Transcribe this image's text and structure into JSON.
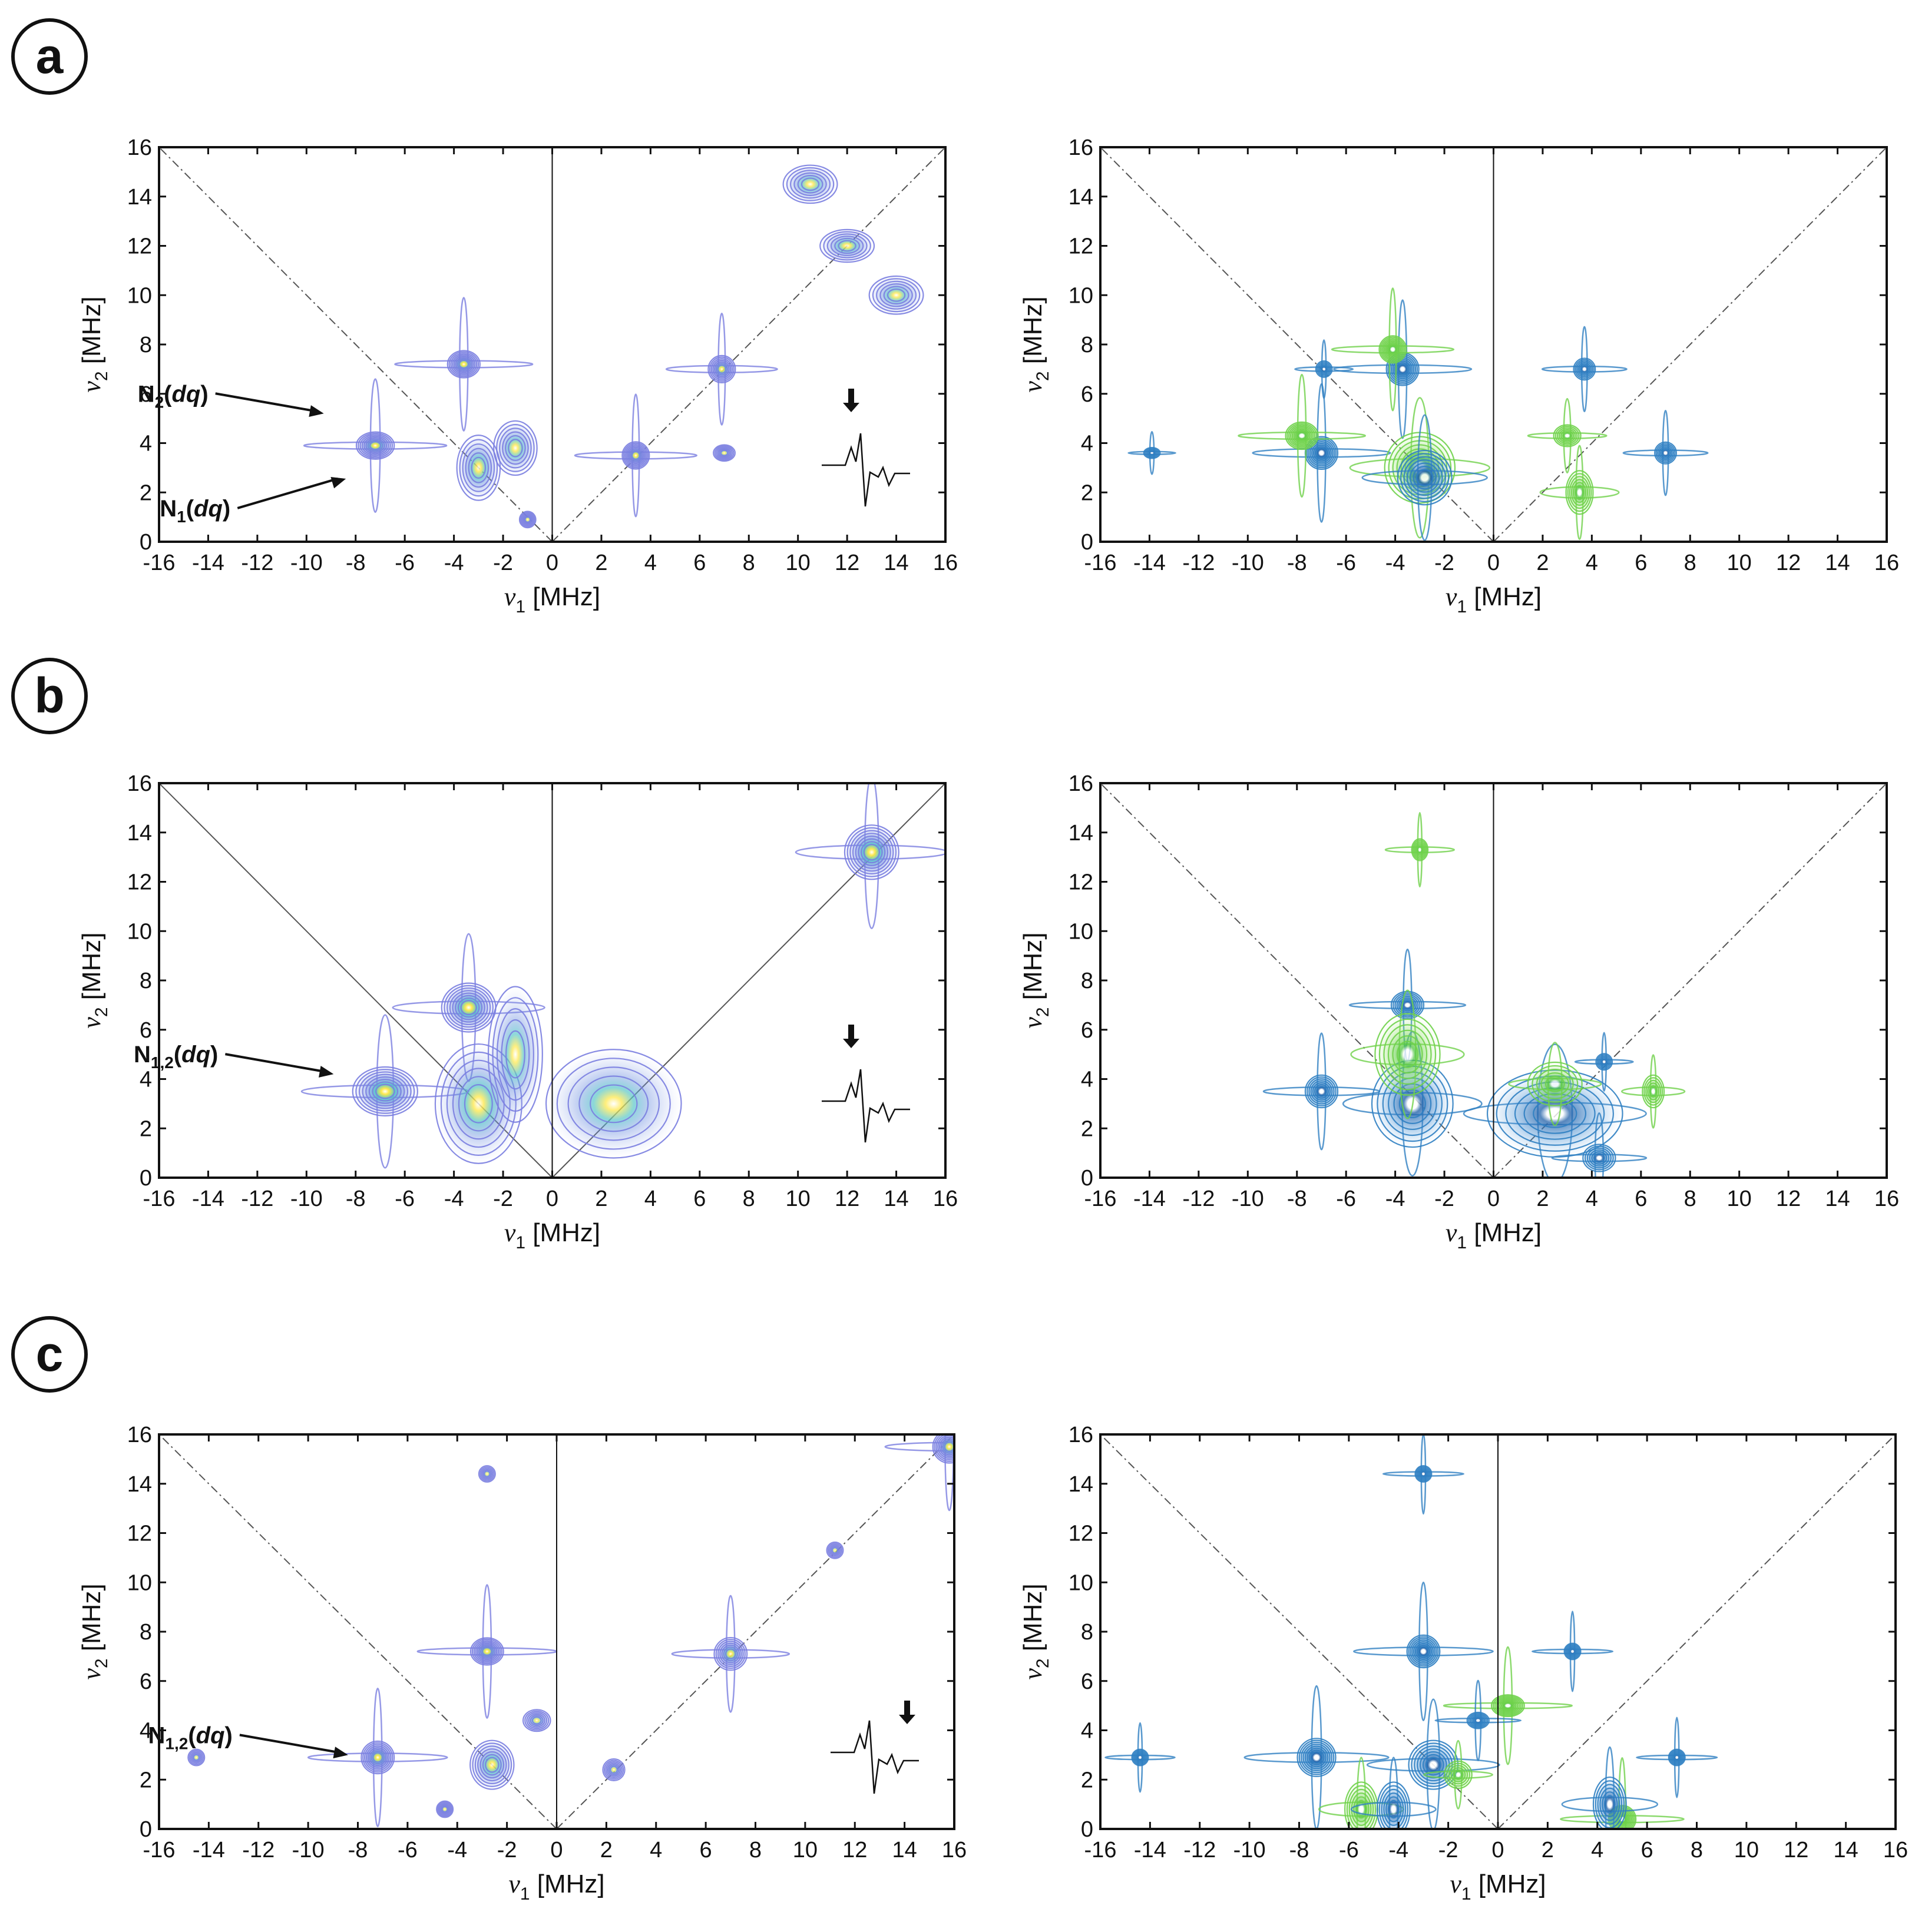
{
  "colors": {
    "axis": "#111111",
    "grid_line": "#555555",
    "contour_raw": "#7a7ee0",
    "contour_raw_fill": "#b9c7f2",
    "contour_blue": "#2f7fc2",
    "contour_green": "#6fd14a",
    "peak_hot": "#f4e640",
    "peak_core": "#ffffff"
  },
  "axes": {
    "xlabel_sym": "ν",
    "xlabel_sub": "1",
    "xlabel_unit": " [MHz]",
    "ylabel_sym": "ν",
    "ylabel_sub": "2",
    "ylabel_unit": " [MHz]",
    "xticks": [
      "-16",
      "-14",
      "-12",
      "-10",
      "-8",
      "-6",
      "-4",
      "-2",
      "0",
      "2",
      "4",
      "6",
      "8",
      "10",
      "12",
      "14",
      "16"
    ],
    "yticks": [
      "0",
      "2",
      "4",
      "6",
      "8",
      "10",
      "12",
      "14",
      "16"
    ],
    "xlim": [
      -16,
      16
    ],
    "ylim": [
      0,
      16
    ]
  },
  "chart_data": [
    {
      "panel": "a",
      "side": "left",
      "type": "heatmap",
      "style": "raw",
      "title": "",
      "xlabel": "ν1 [MHz]",
      "ylabel": "ν2 [MHz]",
      "annotations": [
        {
          "main": "N",
          "sub": "2",
          "rest": "(",
          "ital": "dq",
          "close": ")",
          "target": [
            -9.2,
            5.2
          ]
        },
        {
          "main": "N",
          "sub": "1",
          "rest": "(",
          "ital": "dq",
          "close": ")",
          "target": [
            -8.3,
            2.7
          ]
        }
      ],
      "eseem_trace": true,
      "peaks": [
        {
          "x": -7.2,
          "y": 3.9,
          "w": 0.7,
          "h": 0.5,
          "i": 1.0
        },
        {
          "x": -3.6,
          "y": 7.2,
          "w": 0.6,
          "h": 0.5,
          "i": 1.0
        },
        {
          "x": -3.0,
          "y": 3.0,
          "w": 0.8,
          "h": 1.2,
          "i": 0.6
        },
        {
          "x": -1.5,
          "y": 3.8,
          "w": 0.8,
          "h": 1.0,
          "i": 0.5
        },
        {
          "x": 3.4,
          "y": 3.5,
          "w": 0.5,
          "h": 0.5,
          "i": 0.9
        },
        {
          "x": 6.9,
          "y": 7.0,
          "w": 0.5,
          "h": 0.5,
          "i": 0.8
        },
        {
          "x": 7.0,
          "y": 3.6,
          "w": 0.4,
          "h": 0.3,
          "i": 0.5
        },
        {
          "x": -1.0,
          "y": 0.9,
          "w": 0.3,
          "h": 0.3,
          "i": 0.5
        },
        {
          "x": 12.0,
          "y": 12.0,
          "w": 1.0,
          "h": 0.6,
          "i": 0.6
        },
        {
          "x": 10.5,
          "y": 14.5,
          "w": 1.0,
          "h": 0.7,
          "i": 0.5
        },
        {
          "x": 14.0,
          "y": 10.0,
          "w": 1.0,
          "h": 0.7,
          "i": 0.5
        }
      ]
    },
    {
      "panel": "a",
      "side": "right",
      "type": "heatmap",
      "style": "sim",
      "title": "",
      "xlabel": "ν1 [MHz]",
      "ylabel": "ν2 [MHz]",
      "peaks": [
        {
          "x": -7.0,
          "y": 3.6,
          "w": 0.6,
          "h": 0.6,
          "i": 1.0,
          "c": "blue"
        },
        {
          "x": -3.7,
          "y": 7.0,
          "w": 0.6,
          "h": 0.6,
          "i": 1.0,
          "c": "blue"
        },
        {
          "x": -7.8,
          "y": 4.3,
          "w": 0.6,
          "h": 0.5,
          "i": 0.9,
          "c": "green"
        },
        {
          "x": -4.1,
          "y": 7.8,
          "w": 0.5,
          "h": 0.5,
          "i": 0.9,
          "c": "green"
        },
        {
          "x": -3.0,
          "y": 3.0,
          "w": 1.3,
          "h": 1.3,
          "i": 0.7,
          "c": "green"
        },
        {
          "x": -2.8,
          "y": 2.6,
          "w": 1.0,
          "h": 1.0,
          "i": 0.7,
          "c": "blue"
        },
        {
          "x": 3.7,
          "y": 7.0,
          "w": 0.4,
          "h": 0.4,
          "i": 0.6,
          "c": "blue"
        },
        {
          "x": 7.0,
          "y": 3.6,
          "w": 0.4,
          "h": 0.4,
          "i": 0.6,
          "c": "blue"
        },
        {
          "x": 3.0,
          "y": 4.3,
          "w": 0.5,
          "h": 0.4,
          "i": 0.5,
          "c": "green"
        },
        {
          "x": 3.5,
          "y": 2.0,
          "w": 0.5,
          "h": 0.8,
          "i": 0.5,
          "c": "green"
        },
        {
          "x": -6.9,
          "y": 7.0,
          "w": 0.3,
          "h": 0.3,
          "i": 0.4,
          "c": "blue"
        },
        {
          "x": -13.9,
          "y": 3.6,
          "w": 0.3,
          "h": 0.2,
          "i": 0.3,
          "c": "blue"
        }
      ]
    },
    {
      "panel": "b",
      "side": "left",
      "type": "heatmap",
      "style": "raw",
      "title": "",
      "xlabel": "ν1 [MHz]",
      "ylabel": "ν2 [MHz]",
      "annotations": [
        {
          "main": "N",
          "sub": "1,2",
          "rest": "(",
          "ital": "dq",
          "close": ")",
          "target": [
            -8.8,
            4.2
          ]
        }
      ],
      "eseem_trace": true,
      "peaks": [
        {
          "x": -6.8,
          "y": 3.5,
          "w": 1.2,
          "h": 0.9,
          "i": 1.0
        },
        {
          "x": -3.4,
          "y": 6.9,
          "w": 1.0,
          "h": 0.9,
          "i": 0.95
        },
        {
          "x": -3.0,
          "y": 3.0,
          "w": 1.6,
          "h": 2.2,
          "i": 0.5
        },
        {
          "x": 13.0,
          "y": 13.2,
          "w": 1.0,
          "h": 1.0,
          "i": 0.95
        },
        {
          "x": 2.5,
          "y": 3.0,
          "w": 2.5,
          "h": 2.0,
          "i": 0.4
        },
        {
          "x": -1.5,
          "y": 5.0,
          "w": 1.0,
          "h": 2.5,
          "i": 0.35
        }
      ]
    },
    {
      "panel": "b",
      "side": "right",
      "type": "heatmap",
      "style": "sim",
      "title": "",
      "xlabel": "ν1 [MHz]",
      "ylabel": "ν2 [MHz]",
      "peaks": [
        {
          "x": -7.0,
          "y": 3.5,
          "w": 0.6,
          "h": 0.6,
          "i": 0.8,
          "c": "blue"
        },
        {
          "x": -3.5,
          "y": 7.0,
          "w": 0.6,
          "h": 0.5,
          "i": 0.8,
          "c": "blue"
        },
        {
          "x": -3.3,
          "y": 3.0,
          "w": 1.5,
          "h": 1.6,
          "i": 0.6,
          "c": "blue"
        },
        {
          "x": 2.5,
          "y": 2.6,
          "w": 2.5,
          "h": 1.6,
          "i": 0.55,
          "c": "blue"
        },
        {
          "x": 4.3,
          "y": 0.8,
          "w": 0.6,
          "h": 0.5,
          "i": 0.6,
          "c": "blue"
        },
        {
          "x": -3.0,
          "y": 13.3,
          "w": 0.3,
          "h": 0.4,
          "i": 0.5,
          "c": "green"
        },
        {
          "x": -3.5,
          "y": 5.0,
          "w": 1.2,
          "h": 1.5,
          "i": 0.5,
          "c": "green"
        },
        {
          "x": 2.5,
          "y": 3.8,
          "w": 1.0,
          "h": 0.8,
          "i": 0.4,
          "c": "green"
        },
        {
          "x": 6.5,
          "y": 3.5,
          "w": 0.4,
          "h": 0.6,
          "i": 0.4,
          "c": "green"
        },
        {
          "x": 4.5,
          "y": 4.7,
          "w": 0.3,
          "h": 0.3,
          "i": 0.4,
          "c": "blue"
        }
      ]
    },
    {
      "panel": "c",
      "side": "left",
      "type": "heatmap",
      "style": "raw",
      "title": "",
      "xlabel": "ν1 [MHz]",
      "ylabel": "ν2 [MHz]",
      "annotations": [
        {
          "main": "N",
          "sub": "1,2",
          "rest": "(",
          "ital": "dq",
          "close": ")",
          "target": [
            -8.3,
            3.0
          ]
        }
      ],
      "eseem_trace": true,
      "peaks": [
        {
          "x": -7.2,
          "y": 2.9,
          "w": 0.6,
          "h": 0.6,
          "i": 1.0
        },
        {
          "x": -2.8,
          "y": 7.2,
          "w": 0.6,
          "h": 0.5,
          "i": 1.0
        },
        {
          "x": -2.6,
          "y": 2.6,
          "w": 0.8,
          "h": 0.9,
          "i": 0.7
        },
        {
          "x": 7.0,
          "y": 7.1,
          "w": 0.6,
          "h": 0.6,
          "i": 0.8
        },
        {
          "x": 2.3,
          "y": 2.4,
          "w": 0.4,
          "h": 0.4,
          "i": 0.5
        },
        {
          "x": -0.8,
          "y": 4.4,
          "w": 0.5,
          "h": 0.4,
          "i": 0.5
        },
        {
          "x": 15.8,
          "y": 15.5,
          "w": 0.6,
          "h": 0.6,
          "i": 0.9
        },
        {
          "x": -4.5,
          "y": 0.8,
          "w": 0.3,
          "h": 0.3,
          "i": 0.5
        },
        {
          "x": -14.5,
          "y": 2.9,
          "w": 0.3,
          "h": 0.3,
          "i": 0.4
        },
        {
          "x": 11.2,
          "y": 11.3,
          "w": 0.3,
          "h": 0.3,
          "i": 0.4
        },
        {
          "x": -2.8,
          "y": 14.4,
          "w": 0.3,
          "h": 0.3,
          "i": 0.4
        }
      ]
    },
    {
      "panel": "c",
      "side": "right",
      "type": "heatmap",
      "style": "sim",
      "title": "",
      "xlabel": "ν1 [MHz]",
      "ylabel": "ν2 [MHz]",
      "peaks": [
        {
          "x": -7.3,
          "y": 2.9,
          "w": 0.7,
          "h": 0.7,
          "i": 1.0,
          "c": "blue"
        },
        {
          "x": -3.0,
          "y": 7.2,
          "w": 0.6,
          "h": 0.6,
          "i": 1.0,
          "c": "blue"
        },
        {
          "x": -2.6,
          "y": 2.6,
          "w": 0.9,
          "h": 0.9,
          "i": 0.8,
          "c": "blue"
        },
        {
          "x": -3.0,
          "y": 14.4,
          "w": 0.3,
          "h": 0.3,
          "i": 0.6,
          "c": "blue"
        },
        {
          "x": 0.4,
          "y": 5.0,
          "w": 0.6,
          "h": 0.4,
          "i": 0.9,
          "c": "green"
        },
        {
          "x": 5.0,
          "y": 0.4,
          "w": 0.5,
          "h": 0.5,
          "i": 0.9,
          "c": "green"
        },
        {
          "x": -0.8,
          "y": 4.4,
          "w": 0.4,
          "h": 0.3,
          "i": 0.6,
          "c": "blue"
        },
        {
          "x": 3.0,
          "y": 7.2,
          "w": 0.3,
          "h": 0.3,
          "i": 0.6,
          "c": "blue"
        },
        {
          "x": 7.2,
          "y": 2.9,
          "w": 0.3,
          "h": 0.3,
          "i": 0.6,
          "c": "blue"
        },
        {
          "x": 4.5,
          "y": 1.0,
          "w": 0.6,
          "h": 1.0,
          "i": 0.6,
          "c": "blue"
        },
        {
          "x": -14.4,
          "y": 2.9,
          "w": 0.3,
          "h": 0.3,
          "i": 0.5,
          "c": "blue"
        },
        {
          "x": -5.5,
          "y": 0.8,
          "w": 0.6,
          "h": 1.0,
          "i": 0.5,
          "c": "green"
        },
        {
          "x": -4.2,
          "y": 0.8,
          "w": 0.6,
          "h": 1.0,
          "i": 0.5,
          "c": "blue"
        },
        {
          "x": -1.6,
          "y": 2.2,
          "w": 0.5,
          "h": 0.5,
          "i": 0.4,
          "c": "green"
        }
      ]
    }
  ],
  "panels": [
    {
      "label": "a"
    },
    {
      "label": "b"
    },
    {
      "label": "c"
    }
  ]
}
